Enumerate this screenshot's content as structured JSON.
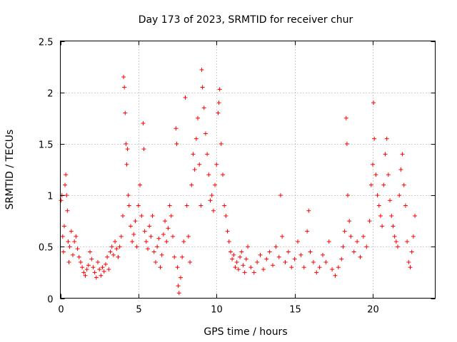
{
  "chart_data": {
    "type": "scatter",
    "title": "Day 173 of 2023, SRMTID for receiver chur",
    "xlabel": "GPS time / hours",
    "ylabel": "SRMTID / TECUs",
    "xlim": [
      0,
      24
    ],
    "ylim": [
      0,
      2.5
    ],
    "x_ticks": [
      0,
      5,
      10,
      15,
      20
    ],
    "x_tick_labels": [
      "0",
      "5",
      "10",
      "15",
      "20"
    ],
    "y_ticks": [
      0,
      0.5,
      1,
      1.5,
      2,
      2.5
    ],
    "y_tick_labels": [
      "0",
      "0.5",
      "1",
      "1.5",
      "2",
      "2.5"
    ],
    "grid": true,
    "marker": "+",
    "color": "#ff0000",
    "series": [
      {
        "name": "SRMTID",
        "points": [
          [
            0.05,
            0.95
          ],
          [
            0.1,
            1.0
          ],
          [
            0.15,
            0.6
          ],
          [
            0.2,
            0.45
          ],
          [
            0.25,
            0.7
          ],
          [
            0.3,
            1.1
          ],
          [
            0.35,
            1.2
          ],
          [
            0.4,
            1.0
          ],
          [
            0.45,
            0.85
          ],
          [
            0.5,
            0.55
          ],
          [
            0.55,
            0.35
          ],
          [
            0.6,
            0.5
          ],
          [
            0.7,
            0.65
          ],
          [
            0.8,
            0.42
          ],
          [
            0.9,
            0.55
          ],
          [
            1.0,
            0.6
          ],
          [
            1.1,
            0.48
          ],
          [
            1.2,
            0.4
          ],
          [
            1.3,
            0.35
          ],
          [
            1.4,
            0.3
          ],
          [
            1.5,
            0.25
          ],
          [
            1.6,
            0.22
          ],
          [
            1.7,
            0.28
          ],
          [
            1.8,
            0.32
          ],
          [
            1.9,
            0.45
          ],
          [
            2.0,
            0.38
          ],
          [
            2.1,
            0.3
          ],
          [
            2.2,
            0.25
          ],
          [
            2.3,
            0.2
          ],
          [
            2.4,
            0.35
          ],
          [
            2.5,
            0.28
          ],
          [
            2.6,
            0.22
          ],
          [
            2.7,
            0.3
          ],
          [
            2.8,
            0.26
          ],
          [
            2.9,
            0.33
          ],
          [
            3.0,
            0.4
          ],
          [
            3.1,
            0.28
          ],
          [
            3.2,
            0.45
          ],
          [
            3.3,
            0.5
          ],
          [
            3.4,
            0.42
          ],
          [
            3.5,
            0.55
          ],
          [
            3.6,
            0.48
          ],
          [
            3.7,
            0.4
          ],
          [
            3.8,
            0.5
          ],
          [
            3.9,
            0.6
          ],
          [
            4.0,
            0.8
          ],
          [
            4.05,
            2.15
          ],
          [
            4.1,
            2.05
          ],
          [
            4.15,
            1.8
          ],
          [
            4.2,
            1.5
          ],
          [
            4.25,
            1.3
          ],
          [
            4.3,
            1.45
          ],
          [
            4.35,
            1.0
          ],
          [
            4.4,
            0.9
          ],
          [
            4.5,
            0.7
          ],
          [
            4.6,
            0.55
          ],
          [
            4.7,
            0.62
          ],
          [
            4.8,
            0.75
          ],
          [
            4.9,
            0.5
          ],
          [
            5.0,
            0.9
          ],
          [
            5.1,
            1.1
          ],
          [
            5.2,
            0.8
          ],
          [
            5.3,
            1.7
          ],
          [
            5.35,
            1.45
          ],
          [
            5.4,
            0.65
          ],
          [
            5.5,
            0.55
          ],
          [
            5.6,
            0.48
          ],
          [
            5.7,
            0.7
          ],
          [
            5.8,
            0.6
          ],
          [
            5.9,
            0.8
          ],
          [
            6.0,
            0.45
          ],
          [
            6.1,
            0.35
          ],
          [
            6.2,
            0.5
          ],
          [
            6.3,
            0.58
          ],
          [
            6.4,
            0.3
          ],
          [
            6.5,
            0.42
          ],
          [
            6.6,
            0.62
          ],
          [
            6.7,
            0.75
          ],
          [
            6.8,
            0.55
          ],
          [
            6.9,
            0.68
          ],
          [
            7.0,
            0.9
          ],
          [
            7.1,
            0.8
          ],
          [
            7.2,
            0.6
          ],
          [
            7.3,
            0.4
          ],
          [
            7.4,
            1.65
          ],
          [
            7.45,
            1.5
          ],
          [
            7.5,
            0.3
          ],
          [
            7.55,
            0.12
          ],
          [
            7.6,
            0.05
          ],
          [
            7.7,
            0.2
          ],
          [
            7.8,
            0.4
          ],
          [
            7.9,
            0.55
          ],
          [
            8.0,
            1.95
          ],
          [
            8.1,
            0.9
          ],
          [
            8.2,
            0.6
          ],
          [
            8.3,
            0.35
          ],
          [
            8.4,
            1.1
          ],
          [
            8.5,
            1.4
          ],
          [
            8.6,
            1.25
          ],
          [
            8.7,
            1.55
          ],
          [
            8.8,
            1.75
          ],
          [
            8.9,
            1.3
          ],
          [
            9.0,
            0.9
          ],
          [
            9.05,
            2.22
          ],
          [
            9.1,
            2.05
          ],
          [
            9.2,
            1.85
          ],
          [
            9.3,
            1.6
          ],
          [
            9.4,
            1.4
          ],
          [
            9.5,
            1.2
          ],
          [
            9.6,
            0.95
          ],
          [
            9.7,
            1.0
          ],
          [
            9.8,
            0.85
          ],
          [
            9.9,
            1.1
          ],
          [
            10.0,
            1.3
          ],
          [
            10.1,
            1.8
          ],
          [
            10.15,
            1.9
          ],
          [
            10.2,
            2.03
          ],
          [
            10.3,
            1.5
          ],
          [
            10.4,
            1.2
          ],
          [
            10.5,
            0.9
          ],
          [
            10.6,
            0.8
          ],
          [
            10.7,
            0.65
          ],
          [
            10.8,
            0.55
          ],
          [
            10.9,
            0.45
          ],
          [
            11.0,
            0.38
          ],
          [
            11.1,
            0.42
          ],
          [
            11.2,
            0.3
          ],
          [
            11.3,
            0.35
          ],
          [
            11.4,
            0.28
          ],
          [
            11.5,
            0.4
          ],
          [
            11.6,
            0.45
          ],
          [
            11.7,
            0.32
          ],
          [
            11.8,
            0.25
          ],
          [
            11.9,
            0.38
          ],
          [
            12.0,
            0.5
          ],
          [
            12.2,
            0.3
          ],
          [
            12.4,
            0.25
          ],
          [
            12.6,
            0.35
          ],
          [
            12.8,
            0.42
          ],
          [
            13.0,
            0.28
          ],
          [
            13.2,
            0.38
          ],
          [
            13.4,
            0.45
          ],
          [
            13.6,
            0.32
          ],
          [
            13.8,
            0.5
          ],
          [
            14.0,
            0.4
          ],
          [
            14.1,
            1.0
          ],
          [
            14.2,
            0.6
          ],
          [
            14.4,
            0.35
          ],
          [
            14.6,
            0.45
          ],
          [
            14.8,
            0.3
          ],
          [
            15.0,
            0.38
          ],
          [
            15.2,
            0.55
          ],
          [
            15.4,
            0.42
          ],
          [
            15.6,
            0.3
          ],
          [
            15.8,
            0.65
          ],
          [
            15.9,
            0.85
          ],
          [
            16.0,
            0.45
          ],
          [
            16.2,
            0.35
          ],
          [
            16.4,
            0.25
          ],
          [
            16.6,
            0.3
          ],
          [
            16.8,
            0.42
          ],
          [
            17.0,
            0.35
          ],
          [
            17.2,
            0.55
          ],
          [
            17.4,
            0.28
          ],
          [
            17.6,
            0.22
          ],
          [
            17.8,
            0.3
          ],
          [
            18.0,
            0.38
          ],
          [
            18.1,
            0.5
          ],
          [
            18.2,
            0.65
          ],
          [
            18.3,
            1.75
          ],
          [
            18.35,
            1.5
          ],
          [
            18.4,
            1.0
          ],
          [
            18.5,
            0.75
          ],
          [
            18.6,
            0.6
          ],
          [
            18.8,
            0.45
          ],
          [
            19.0,
            0.55
          ],
          [
            19.2,
            0.4
          ],
          [
            19.4,
            0.6
          ],
          [
            19.6,
            0.5
          ],
          [
            19.8,
            0.75
          ],
          [
            19.9,
            1.1
          ],
          [
            20.0,
            1.3
          ],
          [
            20.05,
            1.9
          ],
          [
            20.1,
            1.55
          ],
          [
            20.2,
            1.2
          ],
          [
            20.3,
            1.0
          ],
          [
            20.4,
            0.9
          ],
          [
            20.5,
            0.8
          ],
          [
            20.6,
            0.7
          ],
          [
            20.7,
            1.1
          ],
          [
            20.8,
            1.4
          ],
          [
            20.9,
            1.55
          ],
          [
            21.0,
            1.2
          ],
          [
            21.1,
            0.95
          ],
          [
            21.2,
            0.8
          ],
          [
            21.3,
            0.7
          ],
          [
            21.4,
            0.6
          ],
          [
            21.5,
            0.55
          ],
          [
            21.6,
            0.5
          ],
          [
            21.7,
            1.0
          ],
          [
            21.8,
            1.25
          ],
          [
            21.9,
            1.4
          ],
          [
            22.0,
            1.1
          ],
          [
            22.1,
            0.9
          ],
          [
            22.2,
            0.55
          ],
          [
            22.3,
            0.35
          ],
          [
            22.4,
            0.3
          ],
          [
            22.5,
            0.45
          ],
          [
            22.6,
            0.6
          ],
          [
            22.7,
            0.8
          ]
        ]
      }
    ]
  }
}
